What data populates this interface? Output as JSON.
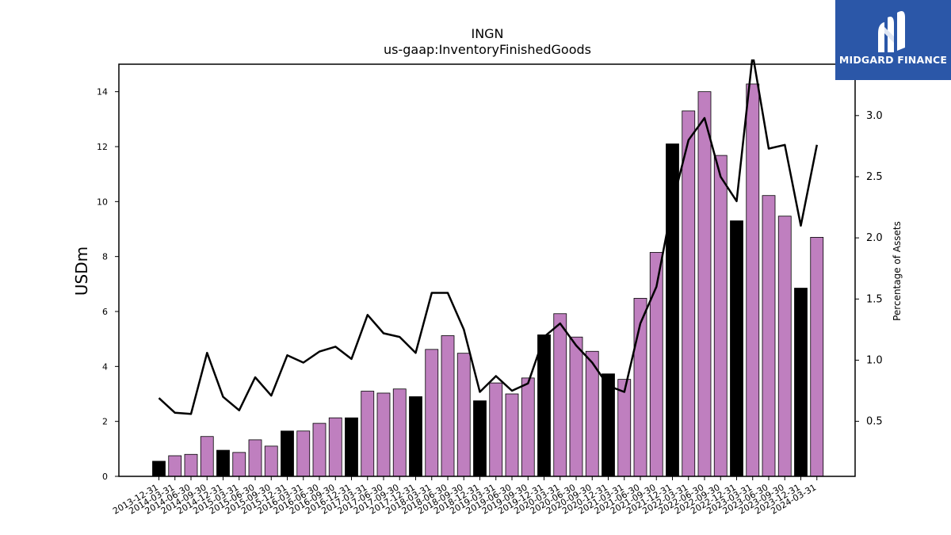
{
  "chart_data": {
    "type": "bar",
    "title": "INGN",
    "subtitle": "us-gaap:InventoryFinishedGoods",
    "ylabel": "USDm",
    "y2label": "Percentage of Assets",
    "ylim": [
      0,
      15
    ],
    "y2lim": [
      0.05,
      3.42
    ],
    "yticks": [
      0,
      2,
      4,
      6,
      8,
      10,
      12,
      14
    ],
    "y2ticks": [
      0.5,
      1.0,
      1.5,
      2.0,
      2.5,
      3.0
    ],
    "categories": [
      "2013-12-31",
      "2014-03-31",
      "2014-06-30",
      "2014-09-30",
      "2014-12-31",
      "2015-03-31",
      "2015-06-30",
      "2015-09-30",
      "2015-12-31",
      "2016-03-31",
      "2016-06-30",
      "2016-09-30",
      "2016-12-31",
      "2017-03-31",
      "2017-06-30",
      "2017-09-30",
      "2017-12-31",
      "2018-03-31",
      "2018-06-30",
      "2018-09-30",
      "2018-12-31",
      "2019-03-31",
      "2019-06-30",
      "2019-09-30",
      "2019-12-31",
      "2020-03-31",
      "2020-06-30",
      "2020-09-30",
      "2020-12-31",
      "2021-03-31",
      "2021-06-30",
      "2021-09-30",
      "2021-12-31",
      "2022-03-31",
      "2022-06-30",
      "2022-09-30",
      "2022-12-31",
      "2023-03-31",
      "2023-06-30",
      "2023-09-30",
      "2023-12-31",
      "2024-03-31"
    ],
    "series": [
      {
        "values": [
          0.55,
          0.75,
          0.8,
          1.45,
          0.95,
          0.87,
          1.33,
          1.1,
          1.65,
          1.65,
          1.93,
          2.13,
          2.13,
          3.1,
          3.03,
          3.18,
          2.9,
          4.62,
          5.12,
          4.48,
          2.75,
          3.4,
          3.0,
          3.58,
          5.15,
          5.92,
          5.07,
          4.55,
          3.73,
          3.53,
          6.48,
          8.15,
          12.1,
          13.3,
          14.0,
          11.68,
          9.3,
          14.28,
          10.22,
          9.47,
          6.85,
          8.7
        ],
        "colors": [
          "#000000",
          "#bf7fbf",
          "#bf7fbf",
          "#bf7fbf",
          "#000000",
          "#bf7fbf",
          "#bf7fbf",
          "#bf7fbf",
          "#000000",
          "#bf7fbf",
          "#bf7fbf",
          "#bf7fbf",
          "#000000",
          "#bf7fbf",
          "#bf7fbf",
          "#bf7fbf",
          "#000000",
          "#bf7fbf",
          "#bf7fbf",
          "#bf7fbf",
          "#000000",
          "#bf7fbf",
          "#bf7fbf",
          "#bf7fbf",
          "#000000",
          "#bf7fbf",
          "#bf7fbf",
          "#bf7fbf",
          "#000000",
          "#bf7fbf",
          "#bf7fbf",
          "#bf7fbf",
          "#000000",
          "#bf7fbf",
          "#bf7fbf",
          "#bf7fbf",
          "#000000",
          "#bf7fbf",
          "#bf7fbf",
          "#bf7fbf",
          "#000000",
          "#bf7fbf"
        ]
      },
      {
        "type": "line",
        "axis": "right",
        "values": [
          0.69,
          0.57,
          0.56,
          1.06,
          0.7,
          0.59,
          0.86,
          0.71,
          1.04,
          0.98,
          1.07,
          1.11,
          1.01,
          1.37,
          1.22,
          1.19,
          1.06,
          1.55,
          1.55,
          1.25,
          0.74,
          0.87,
          0.75,
          0.81,
          1.19,
          1.3,
          1.12,
          0.98,
          0.79,
          0.74,
          1.3,
          1.6,
          2.28,
          2.8,
          2.98,
          2.5,
          2.3,
          3.5,
          2.73,
          2.76,
          2.1,
          2.76
        ]
      }
    ],
    "grid": false
  },
  "branding": {
    "logo_text": "MIDGARD FINANCE"
  },
  "colors": {
    "highlight_bar": "#000000",
    "bar": "#bf7fbf",
    "line": "#000000",
    "logo_bg": "#2b57a8"
  }
}
